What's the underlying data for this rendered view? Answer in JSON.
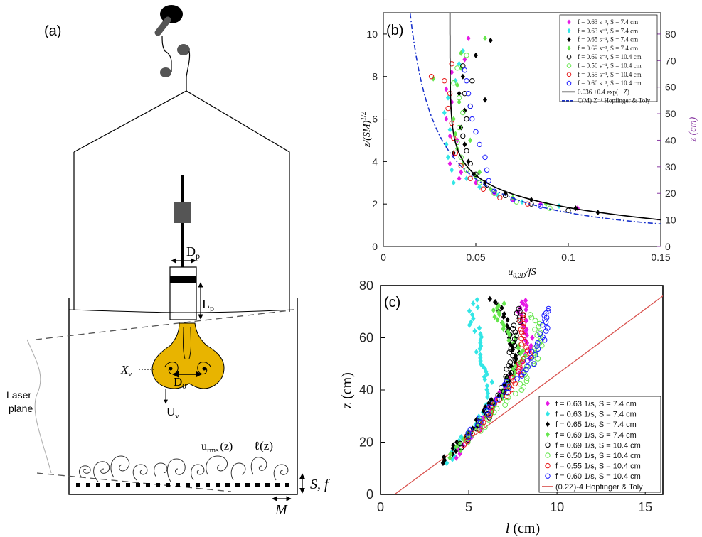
{
  "panel_a": {
    "label": "(a)",
    "annotations": {
      "Dp_main": "D",
      "Dp_sub": "p",
      "Lp_main": "L",
      "Lp_sub": "p",
      "Xv_main": "X",
      "Xv_sub": "v",
      "Xv_dots": "……",
      "D0_main": "D",
      "D0_sub": "0",
      "Uv_main": "U",
      "Uv_sub": "v",
      "laser_line1": "Laser",
      "laser_line2": "plane",
      "urms_main": "u",
      "urms_sub": "rms",
      "urms_arg": "(z)",
      "ell": "ℓ(z)",
      "Sf": "S, f",
      "M": "M"
    },
    "colors": {
      "vortex": "#e8b400",
      "outline": "#000000",
      "logo": "#555555"
    }
  },
  "chart_data": [
    {
      "panel": "(b)",
      "type": "scatter",
      "xlabel": "u0,2D / fS",
      "ylabel_left": "z/(SM)^1/2",
      "ylabel_right": "z (cm)",
      "xlim": [
        0,
        0.15
      ],
      "ylim": [
        0,
        11
      ],
      "ylim_right": [
        0,
        88
      ],
      "xticks": [
        "0",
        "0.05",
        "0.1",
        "0.15"
      ],
      "yticks": [
        "0",
        "2",
        "4",
        "6",
        "8",
        "10"
      ],
      "yticks_right": [
        "0",
        "10",
        "20",
        "30",
        "40",
        "50",
        "60",
        "70",
        "80"
      ],
      "legend_position": "top-right",
      "series": [
        {
          "name": "f = 0.63 s⁻¹, S = 7.4 cm",
          "color": "#e619e6",
          "marker": "diamond",
          "points": [
            [
              0.105,
              1.8
            ],
            [
              0.085,
              2.0
            ],
            [
              0.07,
              2.2
            ],
            [
              0.06,
              2.5
            ],
            [
              0.05,
              3.0
            ],
            [
              0.042,
              3.5
            ],
            [
              0.038,
              4.3
            ],
            [
              0.036,
              5.2
            ],
            [
              0.034,
              6.0
            ],
            [
              0.037,
              6.8
            ],
            [
              0.034,
              7.4
            ],
            [
              0.037,
              8.2
            ],
            [
              0.044,
              8.8
            ],
            [
              0.046,
              9.8
            ],
            [
              0.04,
              5.0
            ],
            [
              0.036,
              3.9
            ],
            [
              0.041,
              3.2
            ]
          ]
        },
        {
          "name": "f = 0.63 s⁻¹, S = 7.4 cm",
          "color": "#33e6e6",
          "marker": "diamond",
          "points": [
            [
              0.095,
              1.9
            ],
            [
              0.075,
              2.1
            ],
            [
              0.062,
              2.4
            ],
            [
              0.052,
              2.8
            ],
            [
              0.045,
              3.2
            ],
            [
              0.037,
              3.6
            ],
            [
              0.035,
              4.2
            ],
            [
              0.034,
              4.8
            ],
            [
              0.036,
              5.5
            ],
            [
              0.033,
              6.3
            ],
            [
              0.035,
              7.0
            ],
            [
              0.039,
              7.8
            ],
            [
              0.041,
              8.6
            ],
            [
              0.043,
              9.2
            ],
            [
              0.038,
              3.0
            ]
          ]
        },
        {
          "name": "f = 0.65 s⁻¹, S = 7.4 cm",
          "color": "#000000",
          "marker": "diamond",
          "points": [
            [
              0.116,
              1.6
            ],
            [
              0.104,
              1.8
            ],
            [
              0.08,
              2.2
            ],
            [
              0.066,
              2.5
            ],
            [
              0.055,
              3.0
            ],
            [
              0.049,
              3.4
            ],
            [
              0.046,
              4.0
            ],
            [
              0.044,
              4.8
            ],
            [
              0.042,
              5.6
            ],
            [
              0.044,
              6.4
            ],
            [
              0.041,
              7.2
            ],
            [
              0.043,
              8.0
            ],
            [
              0.05,
              9.0
            ],
            [
              0.058,
              9.7
            ],
            [
              0.055,
              6.9
            ],
            [
              0.038,
              4.4
            ]
          ]
        },
        {
          "name": "f = 0.69 s⁻¹, S = 7.4 cm",
          "color": "#66e64d",
          "marker": "diamond",
          "points": [
            [
              0.088,
              2.0
            ],
            [
              0.07,
              2.3
            ],
            [
              0.058,
              2.7
            ],
            [
              0.05,
              3.3
            ],
            [
              0.043,
              3.9
            ],
            [
              0.04,
              4.6
            ],
            [
              0.039,
              5.3
            ],
            [
              0.038,
              6.0
            ],
            [
              0.041,
              6.8
            ],
            [
              0.04,
              7.6
            ],
            [
              0.042,
              8.4
            ],
            [
              0.042,
              9.1
            ],
            [
              0.055,
              9.8
            ],
            [
              0.027,
              7.9
            ],
            [
              0.047,
              5.0
            ],
            [
              0.052,
              3.5
            ]
          ]
        },
        {
          "name": "f = 0.69 s⁻¹, S = 10.4 cm",
          "color": "#000000",
          "marker": "circle",
          "points": [
            [
              0.1,
              1.7
            ],
            [
              0.08,
              2.0
            ],
            [
              0.066,
              2.4
            ],
            [
              0.056,
              2.9
            ],
            [
              0.05,
              3.4
            ],
            [
              0.047,
              3.9
            ],
            [
              0.045,
              4.5
            ],
            [
              0.043,
              5.2
            ],
            [
              0.045,
              6.0
            ],
            [
              0.047,
              6.6
            ],
            [
              0.044,
              7.2
            ],
            [
              0.048,
              7.8
            ],
            [
              0.043,
              8.5
            ]
          ]
        },
        {
          "name": "f = 0.50 s⁻¹, S = 10.4 cm",
          "color": "#66e64d",
          "marker": "circle",
          "points": [
            [
              0.09,
              1.8
            ],
            [
              0.072,
              2.1
            ],
            [
              0.06,
              2.5
            ],
            [
              0.052,
              3.0
            ],
            [
              0.045,
              3.6
            ],
            [
              0.042,
              4.2
            ],
            [
              0.04,
              4.9
            ],
            [
              0.041,
              5.6
            ],
            [
              0.043,
              6.3
            ],
            [
              0.041,
              7.0
            ],
            [
              0.038,
              7.7
            ],
            [
              0.04,
              8.4
            ],
            [
              0.045,
              9.0
            ]
          ]
        },
        {
          "name": "f = 0.55 s⁻¹, S = 10.4 cm",
          "color": "#e61919",
          "marker": "circle",
          "points": [
            [
              0.078,
              2.0
            ],
            [
              0.063,
              2.3
            ],
            [
              0.054,
              2.7
            ],
            [
              0.047,
              3.2
            ],
            [
              0.042,
              3.8
            ],
            [
              0.039,
              4.4
            ],
            [
              0.038,
              5.1
            ],
            [
              0.037,
              5.8
            ],
            [
              0.035,
              6.5
            ],
            [
              0.036,
              7.2
            ],
            [
              0.033,
              7.8
            ],
            [
              0.026,
              8.0
            ],
            [
              0.037,
              8.6
            ]
          ]
        },
        {
          "name": "f = 0.60 s⁻¹, S = 10.4 cm",
          "color": "#1a1aff",
          "marker": "circle",
          "points": [
            [
              0.085,
              1.9
            ],
            [
              0.07,
              2.2
            ],
            [
              0.06,
              2.6
            ],
            [
              0.057,
              3.1
            ],
            [
              0.056,
              3.6
            ],
            [
              0.055,
              4.2
            ],
            [
              0.052,
              4.8
            ],
            [
              0.05,
              5.4
            ],
            [
              0.048,
              6.0
            ],
            [
              0.047,
              6.6
            ],
            [
              0.046,
              7.2
            ],
            [
              0.045,
              7.8
            ],
            [
              0.044,
              8.3
            ]
          ]
        }
      ],
      "curves": [
        {
          "name": "0.036 +0.4 exp(− Z)",
          "color": "#000000",
          "style": "solid",
          "formula": "x = 0.036 + 0.4*exp(-z)"
        },
        {
          "name": "C(M) Z⁻¹ Hopfinger & Toly",
          "color": "#1a33cc",
          "style": "dashdot",
          "formula": "x = 0.159 / z"
        }
      ]
    },
    {
      "panel": "(c)",
      "type": "scatter",
      "xlabel": "l (cm)",
      "ylabel": "z (cm)",
      "xlim": [
        0,
        16
      ],
      "ylim": [
        0,
        80
      ],
      "xticks": [
        "0",
        "5",
        "10",
        "15"
      ],
      "yticks": [
        "0",
        "20",
        "40",
        "60",
        "80"
      ],
      "legend_position": "bottom-right",
      "series": [
        {
          "name": "f = 0.63 1/s, S =  7.4 cm",
          "color": "#e619e6",
          "marker": "diamond",
          "trend": [
            [
              4.3,
              14
            ],
            [
              5.5,
              25
            ],
            [
              6.5,
              35
            ],
            [
              7.5,
              45
            ],
            [
              8.5,
              55
            ],
            [
              8.3,
              62
            ],
            [
              8.0,
              70
            ],
            [
              8.2,
              75
            ]
          ]
        },
        {
          "name": "f = 0.63 1/s, S =  7.4 cm",
          "color": "#33e6e6",
          "marker": "diamond",
          "trend": [
            [
              3.8,
              12
            ],
            [
              4.8,
              22
            ],
            [
              6.0,
              33
            ],
            [
              6.2,
              43
            ],
            [
              5.5,
              50
            ],
            [
              5.8,
              58
            ],
            [
              5.2,
              66
            ],
            [
              5.3,
              76
            ]
          ]
        },
        {
          "name": "f = 0.65 1/s, S =  7.4 cm",
          "color": "#000000",
          "marker": "diamond",
          "trend": [
            [
              3.5,
              12
            ],
            [
              4.5,
              20
            ],
            [
              6.0,
              32
            ],
            [
              7.2,
              42
            ],
            [
              7.8,
              52
            ],
            [
              7.5,
              60
            ],
            [
              7.0,
              68
            ],
            [
              6.2,
              76
            ]
          ]
        },
        {
          "name": "f = 0.69 1/s, S =  7.4 cm",
          "color": "#66e64d",
          "marker": "diamond",
          "trend": [
            [
              4.0,
              14
            ],
            [
              5.2,
              24
            ],
            [
              6.5,
              34
            ],
            [
              7.2,
              44
            ],
            [
              8.0,
              53
            ],
            [
              7.4,
              60
            ],
            [
              6.5,
              68
            ],
            [
              6.8,
              74
            ]
          ]
        },
        {
          "name": "f = 0.69 1/s, S = 10.4 cm",
          "color": "#000000",
          "marker": "circle",
          "trend": [
            [
              4.5,
              18
            ],
            [
              5.8,
              28
            ],
            [
              6.8,
              38
            ],
            [
              7.3,
              48
            ],
            [
              7.6,
              57
            ],
            [
              7.8,
              66
            ],
            [
              8.0,
              72
            ]
          ]
        },
        {
          "name": "f = 0.50 1/s, S = 10.4 cm",
          "color": "#66e64d",
          "marker": "circle",
          "trend": [
            [
              5.0,
              20
            ],
            [
              6.3,
              30
            ],
            [
              7.8,
              40
            ],
            [
              8.4,
              48
            ],
            [
              8.9,
              55
            ],
            [
              9.0,
              62
            ],
            [
              8.5,
              70
            ]
          ]
        },
        {
          "name": "f = 0.55 1/s, S = 10.4 cm",
          "color": "#e61919",
          "marker": "circle",
          "trend": [
            [
              4.7,
              19
            ],
            [
              6.0,
              29
            ],
            [
              7.1,
              39
            ],
            [
              7.9,
              47
            ],
            [
              8.3,
              54
            ],
            [
              8.1,
              62
            ],
            [
              8.0,
              70
            ]
          ]
        },
        {
          "name": "f = 0.60 1/s, S = 10.4 cm",
          "color": "#1a1aff",
          "marker": "circle",
          "trend": [
            [
              5.0,
              22
            ],
            [
              6.2,
              32
            ],
            [
              7.2,
              42
            ],
            [
              8.5,
              50
            ],
            [
              9.0,
              58
            ],
            [
              9.5,
              66
            ],
            [
              9.5,
              72
            ]
          ]
        }
      ],
      "curves": [
        {
          "name": "(0.2Z)-4 Hopfinger & Toly",
          "color": "#d9534f",
          "style": "solid",
          "formula": "z = 5*l + 4"
        }
      ]
    }
  ]
}
